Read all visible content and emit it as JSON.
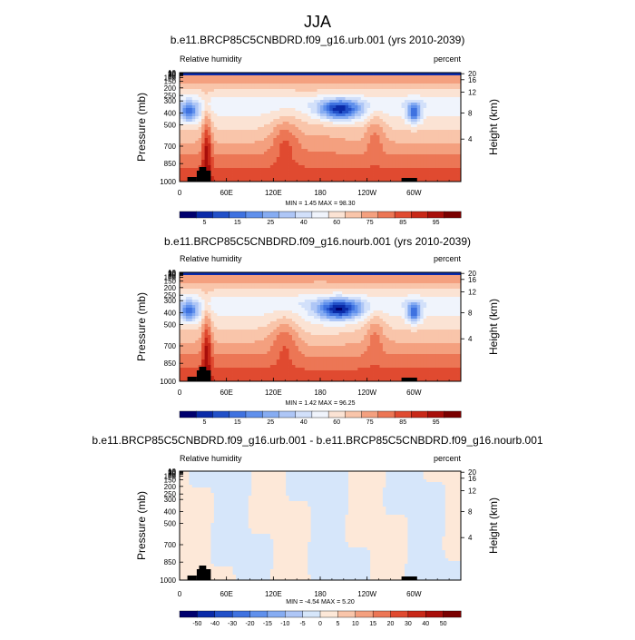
{
  "page_title": "JJA",
  "chart_data": [
    {
      "type": "heatmap",
      "title": "b.e11.BRCP85C5CNBDRD.f09_g16.urb.001 (yrs 2010-2039)",
      "left_label": "Relative humidity",
      "right_label": "percent",
      "ylabel": "Pressure (mb)",
      "ylabel_right": "Height (km)",
      "x_ticks": [
        "0",
        "60E",
        "120E",
        "180",
        "120W",
        "60W"
      ],
      "y_ticks": [
        "1000",
        "850",
        "700",
        "500",
        "400",
        "300",
        "250",
        "200",
        "150",
        "100",
        "70",
        "50",
        "30",
        "20",
        "10"
      ],
      "y_ticks_right": [
        "4",
        "8",
        "12",
        "16",
        "20"
      ],
      "minmax_text": "MIN = 1.45  MAX = 98.30",
      "levels": [
        "5",
        "15",
        "25",
        "40",
        "60",
        "75",
        "85",
        "95"
      ],
      "range": [
        0,
        100
      ]
    },
    {
      "type": "heatmap",
      "title": "b.e11.BRCP85C5CNBDRD.f09_g16.nourb.001 (yrs 2010-2039)",
      "left_label": "Relative humidity",
      "right_label": "percent",
      "ylabel": "Pressure (mb)",
      "ylabel_right": "Height (km)",
      "x_ticks": [
        "0",
        "60E",
        "120E",
        "180",
        "120W",
        "60W"
      ],
      "y_ticks": [
        "1000",
        "850",
        "700",
        "500",
        "400",
        "300",
        "250",
        "200",
        "150",
        "100",
        "70",
        "50",
        "30",
        "20",
        "10"
      ],
      "y_ticks_right": [
        "4",
        "8",
        "12",
        "16",
        "20"
      ],
      "minmax_text": "MIN = 1.42  MAX = 96.25",
      "levels": [
        "5",
        "15",
        "25",
        "40",
        "60",
        "75",
        "85",
        "95"
      ],
      "range": [
        0,
        100
      ]
    },
    {
      "type": "heatmap",
      "title": "b.e11.BRCP85C5CNBDRD.f09_g16.urb.001 - b.e11.BRCP85C5CNBDRD.f09_g16.nourb.001",
      "left_label": "Relative humidity",
      "right_label": "percent",
      "ylabel": "Pressure (mb)",
      "ylabel_right": "Height (km)",
      "x_ticks": [
        "0",
        "60E",
        "120E",
        "180",
        "120W",
        "60W"
      ],
      "y_ticks": [
        "1000",
        "850",
        "700",
        "500",
        "400",
        "300",
        "250",
        "200",
        "150",
        "100",
        "70",
        "50",
        "30",
        "20",
        "10"
      ],
      "y_ticks_right": [
        "4",
        "8",
        "12",
        "16",
        "20"
      ],
      "minmax_text": "MIN = -4.54  MAX =  5.20",
      "levels": [
        "-50",
        "-40",
        "-30",
        "-20",
        "-15",
        "-10",
        "-5",
        "0",
        "5",
        "10",
        "15",
        "20",
        "30",
        "40",
        "50"
      ],
      "range": [
        -4.54,
        5.2
      ]
    }
  ],
  "colors": {
    "seq": [
      "#00006e",
      "#0a2aa8",
      "#2250c8",
      "#3f72e0",
      "#6090ec",
      "#86acf2",
      "#aec6f6",
      "#d2e0fa",
      "#f0f4fc",
      "#fbe3d4",
      "#f9c5aa",
      "#f4a07f",
      "#ec7655",
      "#e04a30",
      "#c82818",
      "#a80e0a",
      "#7a0000"
    ],
    "div": [
      "#00006e",
      "#0a2aa8",
      "#2250c8",
      "#3f72e0",
      "#6090ec",
      "#86acf2",
      "#aec6f6",
      "#d6e6fa",
      "#fde8d8",
      "#f9c5aa",
      "#f4a07f",
      "#ec7655",
      "#e04a30",
      "#c82818",
      "#a80e0a",
      "#7a0000"
    ],
    "panel3_blue": "#d6e6fa",
    "panel3_orange": "#fde8d8",
    "terrain": "#000000"
  }
}
